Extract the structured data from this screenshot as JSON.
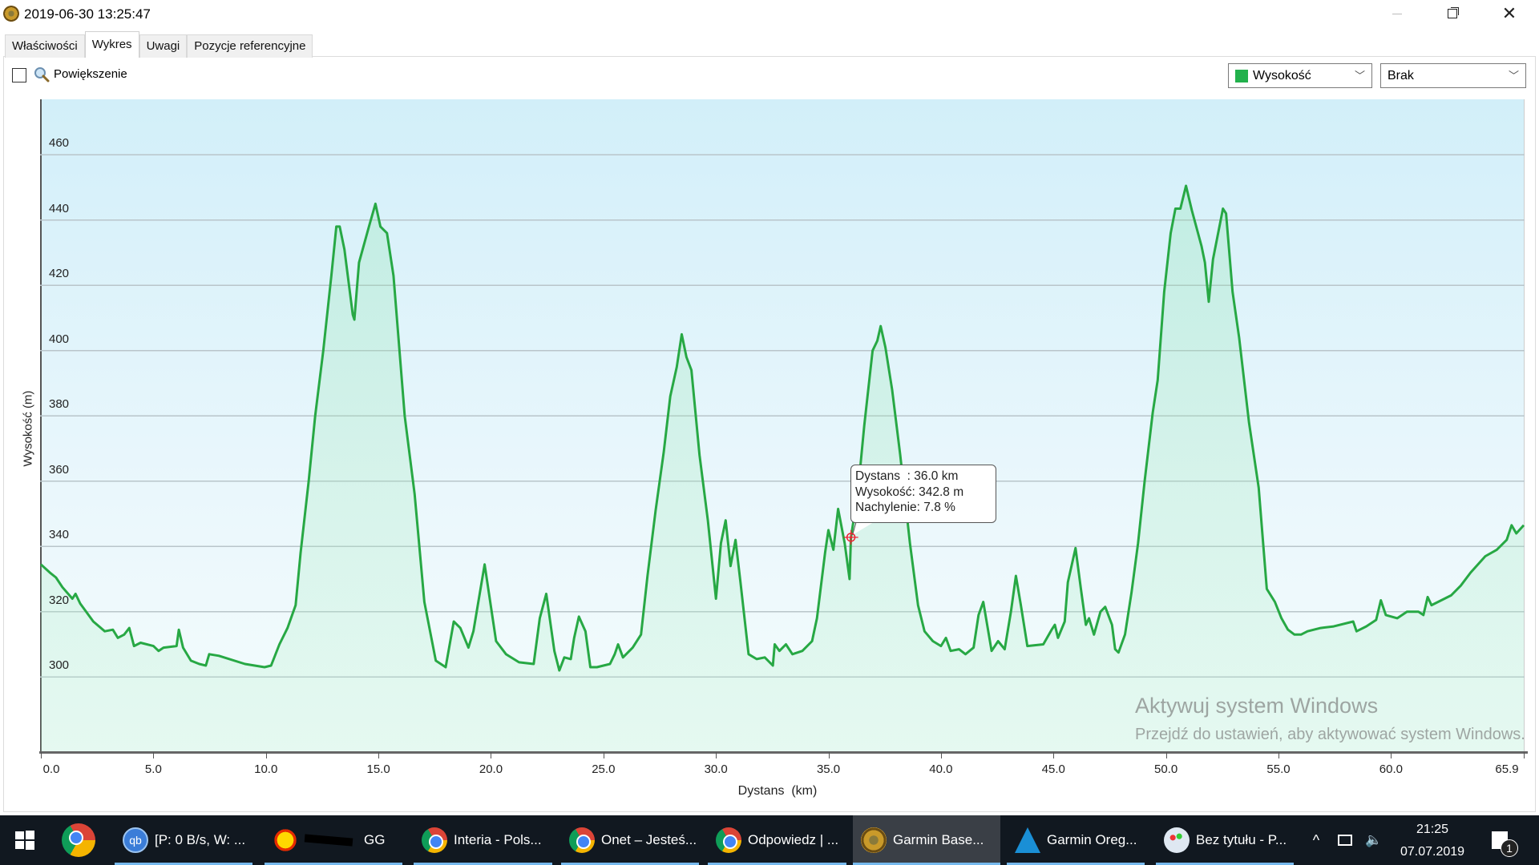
{
  "window": {
    "title": "2019-06-30 13:25:47",
    "minimize_icon": "minimize-icon",
    "restore_icon": "restore-icon",
    "close_icon": "close-icon"
  },
  "tabs": [
    {
      "label": "Właściwości",
      "active": false
    },
    {
      "label": "Wykres",
      "active": true
    },
    {
      "label": "Uwagi",
      "active": false
    },
    {
      "label": "Pozycje referencyjne",
      "active": false
    }
  ],
  "toolbar": {
    "zoom_checked": false,
    "zoom_label": "Powiększenie",
    "series_select": {
      "value": "Wysokość",
      "color": "#22b14c"
    },
    "secondary_select": {
      "value": "Brak"
    }
  },
  "chart_data": {
    "type": "area",
    "xlabel": "Dystans  (km)",
    "ylabel": "Wysokość (m)",
    "xlim": [
      0,
      65.9
    ],
    "ylim": [
      277,
      477
    ],
    "x_ticks": [
      "0.0",
      "5.0",
      "10.0",
      "15.0",
      "20.0",
      "25.0",
      "30.0",
      "35.0",
      "40.0",
      "45.0",
      "50.0",
      "55.0",
      "60.0",
      "65.9"
    ],
    "y_ticks": [
      "300",
      "320",
      "340",
      "360",
      "380",
      "400",
      "420",
      "440",
      "460"
    ],
    "grid": true,
    "line_color": "#27a844",
    "series": [
      {
        "x": [
          0,
          0.4,
          0.67,
          0.96,
          1.4,
          1.54,
          1.75,
          2.33,
          2.84,
          3.2,
          3.42,
          3.7,
          3.93,
          4.14,
          4.43,
          5.0,
          5.23,
          5.45,
          6.03,
          6.13,
          6.32,
          6.67,
          7.04,
          7.33,
          7.48,
          7.91,
          9.07,
          9.94,
          10.23,
          10.6,
          10.96,
          11.32,
          11.54,
          11.9,
          12.19,
          12.55,
          12.91,
          13.13,
          13.28,
          13.49,
          13.86,
          13.93,
          14.14,
          14.58,
          14.87,
          15.09,
          15.38,
          15.67,
          16.17,
          16.61,
          17.04,
          17.55,
          17.99,
          18.35,
          18.64,
          19.0,
          19.22,
          19.72,
          20.23,
          20.67,
          21.25,
          21.9,
          22.17,
          22.46,
          22.82,
          23.04,
          23.26,
          23.55,
          23.7,
          23.91,
          24.2,
          24.42,
          24.71,
          25.29,
          25.5,
          25.65,
          25.87,
          26.3,
          26.67,
          26.96,
          27.32,
          27.68,
          27.97,
          28.26,
          28.48,
          28.69,
          28.91,
          29.27,
          29.64,
          30.0,
          30.22,
          30.43,
          30.65,
          30.87,
          31.09,
          31.45,
          31.81,
          32.17,
          32.53,
          32.61,
          32.82,
          33.11,
          33.4,
          33.84,
          34.27,
          34.49,
          34.85,
          35.0,
          35.22,
          35.43,
          35.72,
          35.94,
          36.0,
          36.3,
          36.59,
          36.96,
          37.17,
          37.32,
          37.53,
          37.83,
          38.19,
          38.62,
          38.98,
          39.27,
          39.64,
          40.0,
          40.22,
          40.43,
          40.8,
          41.09,
          41.45,
          41.67,
          41.88,
          42.25,
          42.54,
          42.83,
          43.11,
          43.33,
          43.55,
          43.84,
          44.55,
          44.92,
          45.06,
          45.2,
          45.5,
          45.64,
          45.98,
          46.22,
          46.44,
          46.58,
          46.8,
          47.09,
          47.3,
          47.6,
          47.74,
          47.89,
          48.18,
          48.47,
          48.76,
          49.05,
          49.41,
          49.63,
          49.92,
          50.21,
          50.42,
          50.64,
          50.89,
          51.15,
          51.58,
          51.73,
          51.9,
          52.09,
          52.53,
          52.67,
          52.96,
          53.25,
          53.69,
          54.12,
          54.48,
          54.84,
          55.13,
          55.42,
          55.71,
          56.0,
          56.29,
          56.87,
          57.45,
          58.32,
          58.47,
          58.9,
          59.34,
          59.55,
          59.77,
          60.28,
          60.71,
          61.22,
          61.44,
          61.63,
          61.8,
          62.67,
          63.1,
          63.54,
          64.19,
          64.7,
          65.14,
          65.36,
          65.57,
          65.9
        ],
        "y": [
          334.5,
          332,
          330.5,
          327.5,
          324,
          325.5,
          322.5,
          317,
          314,
          314.5,
          312,
          313,
          315,
          309.5,
          310.5,
          309.5,
          308,
          309,
          309.5,
          314.5,
          309,
          305,
          304,
          303.5,
          307,
          306.5,
          304,
          303,
          303.5,
          310,
          315,
          322,
          338,
          360,
          380,
          400,
          423,
          438,
          438,
          431,
          411,
          409.5,
          427,
          438,
          445,
          438,
          436,
          423,
          380,
          356,
          323,
          305,
          303,
          317,
          315,
          309,
          314,
          334.5,
          311,
          307,
          304.5,
          304,
          318,
          325.5,
          308,
          302,
          306,
          305.5,
          312,
          318.5,
          314,
          303,
          303,
          304,
          307,
          310,
          306,
          309,
          313,
          331,
          351,
          369,
          386,
          395,
          405,
          398,
          394,
          368,
          348,
          324,
          341,
          348,
          334,
          342,
          329,
          307,
          305.5,
          306,
          303.5,
          310,
          308,
          310,
          307,
          308,
          311,
          318,
          338,
          345,
          339,
          351.5,
          341,
          330,
          342.8,
          356,
          377,
          400,
          403,
          407.5,
          401,
          388,
          368,
          341,
          322,
          314,
          311,
          309.5,
          312,
          308,
          308.5,
          307,
          309,
          319,
          323,
          308,
          311,
          308.5,
          320,
          331,
          322,
          309.5,
          310,
          314.5,
          316,
          312,
          317,
          329,
          339.5,
          327,
          316,
          318,
          313,
          320,
          321.5,
          316,
          308.5,
          307.5,
          313,
          326,
          341,
          360,
          381,
          391,
          418,
          436,
          443.5,
          443.5,
          450.5,
          443,
          432,
          427,
          415,
          428,
          443.5,
          442,
          418,
          404,
          378,
          358,
          327,
          323,
          318,
          314.5,
          313,
          313,
          314,
          315,
          315.5,
          317,
          314,
          315.5,
          317.5,
          323.5,
          319,
          318,
          320,
          320,
          319,
          324.5,
          322,
          325,
          328,
          332,
          337,
          339,
          342,
          346.5,
          344,
          346.5
        ]
      }
    ],
    "cursor": {
      "x": 36.0,
      "y": 342.8
    },
    "tooltip": {
      "line1": "Dystans  : 36.0 km",
      "line2": "Wysokość: 342.8 m",
      "line3": "Nachylenie: 7.8 %"
    }
  },
  "watermark": {
    "title": "Aktywuj system Windows",
    "subtitle": "Przejdź do ustawień, aby aktywować system Windows."
  },
  "taskbar": {
    "items": [
      {
        "label": "[P: 0 B/s, W: ...",
        "icon": "qbittorrent-icon"
      },
      {
        "label": "GG",
        "icon": "gg-sun-icon"
      },
      {
        "label": "Interia - Pols...",
        "icon": "chrome-icon"
      },
      {
        "label": "Onet – Jesteś...",
        "icon": "chrome-icon"
      },
      {
        "label": "Odpowiedz | ...",
        "icon": "chrome-icon"
      },
      {
        "label": "Garmin Base...",
        "icon": "garmin-basecamp-icon",
        "active": true
      },
      {
        "label": "Garmin Oreg...",
        "icon": "garmin-triangle-icon"
      },
      {
        "label": "Bez tytułu - P...",
        "icon": "paint-icon"
      }
    ],
    "clock_time": "21:25",
    "clock_date": "07.07.2019",
    "notification_count": "1"
  }
}
